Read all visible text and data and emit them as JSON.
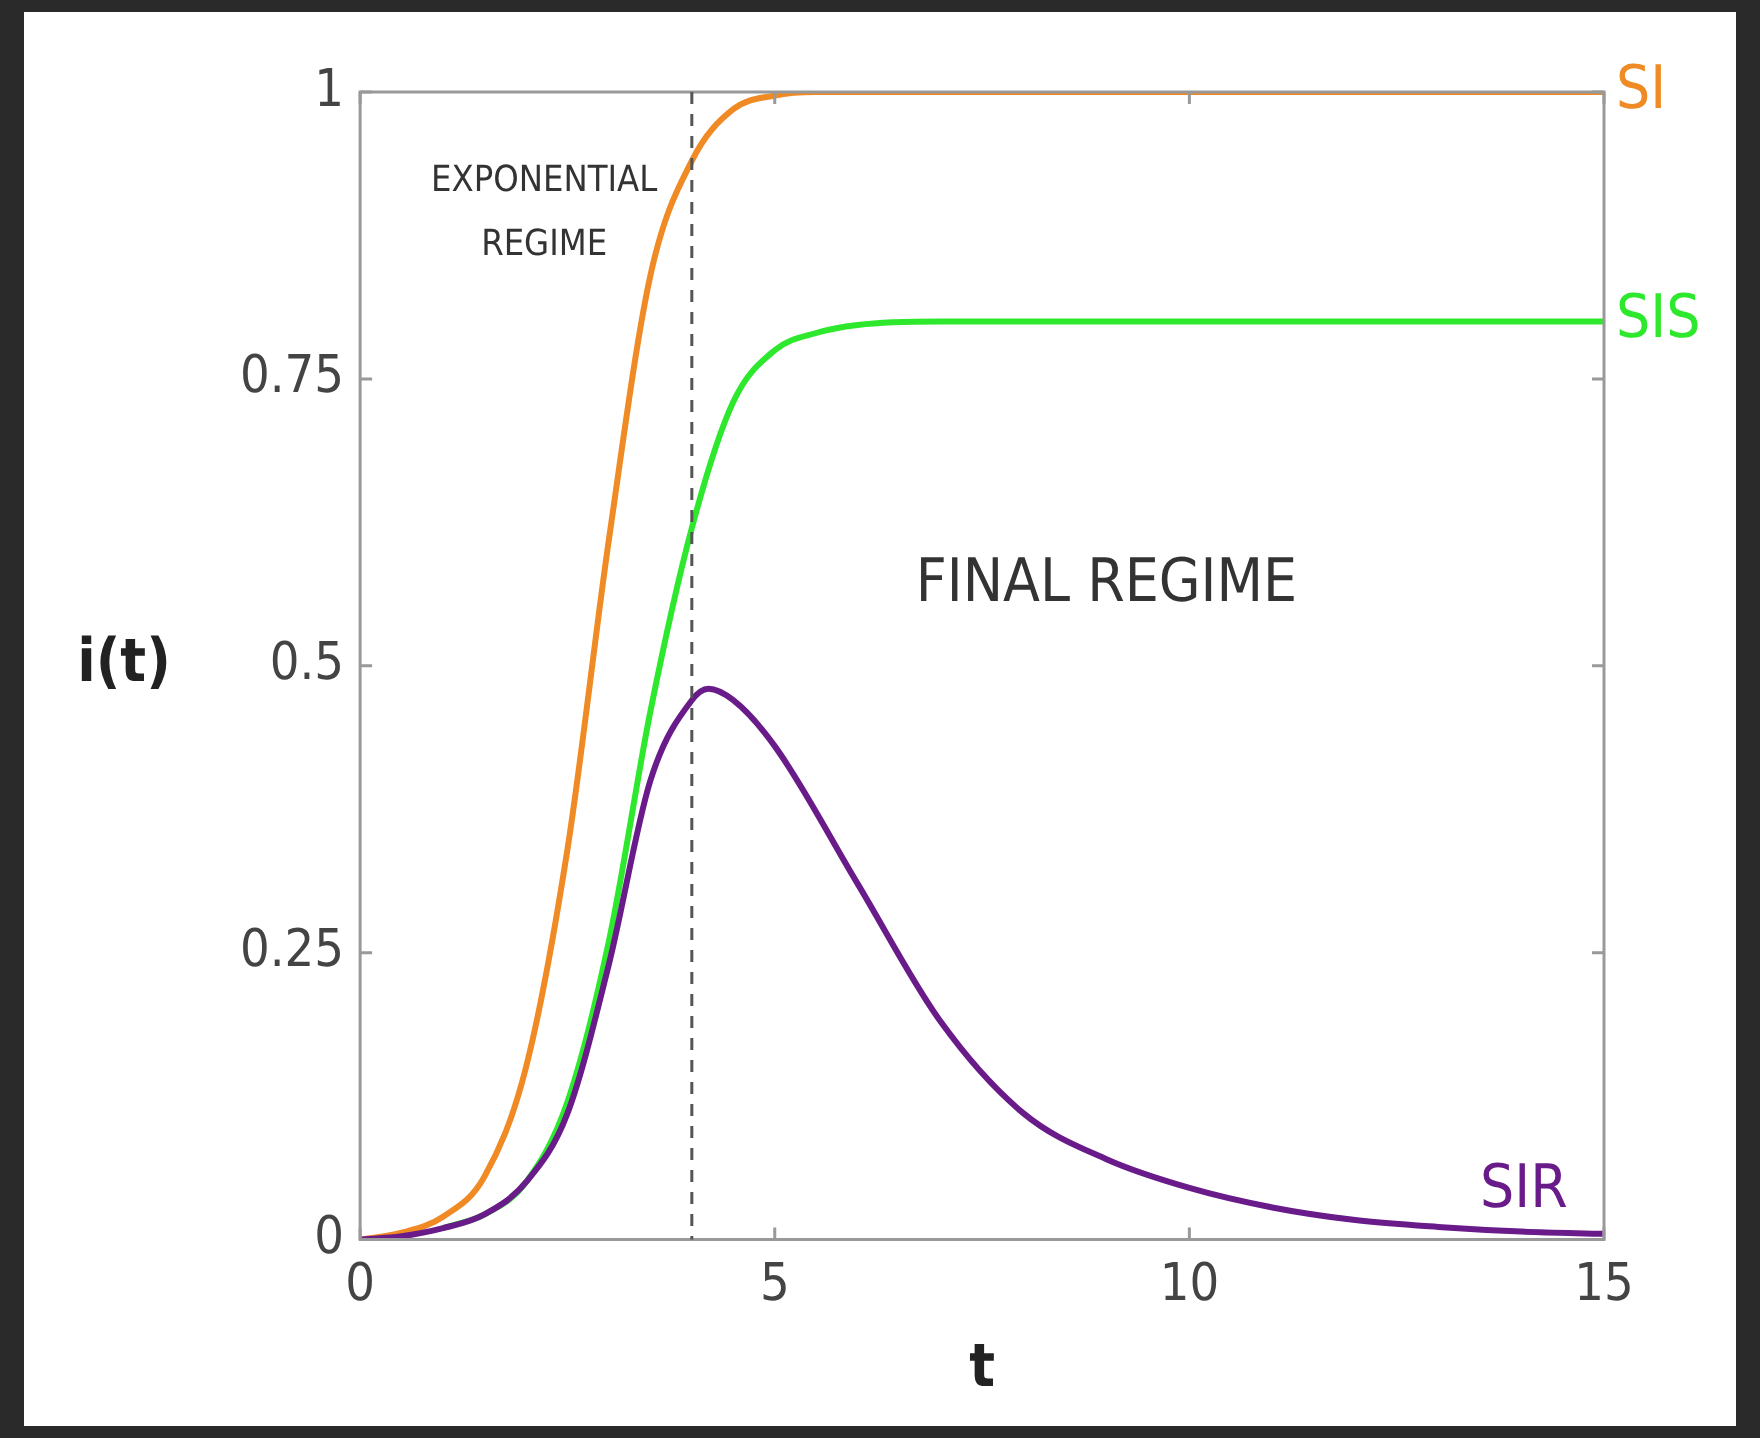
{
  "chart_data": {
    "type": "line",
    "xlabel": "t",
    "ylabel": "i(t)",
    "xlim": [
      0,
      15
    ],
    "ylim": [
      0,
      1
    ],
    "xticks": [
      0,
      5,
      10,
      15
    ],
    "yticks": [
      0,
      0.25,
      0.5,
      0.75,
      1
    ],
    "grid": false,
    "legend": false,
    "marker": "none",
    "line_style": "solid",
    "annotations": [
      "EXPONENTIAL REGIME",
      "FINAL REGIME"
    ],
    "ref_lines": [
      {
        "axis": "x",
        "value": 4,
        "label": null,
        "color": "#555555",
        "line_style": "dashed"
      }
    ],
    "series": [
      {
        "name": "SI",
        "color": "#f08a24",
        "x": [
          0,
          0.5,
          1,
          1.5,
          2,
          2.5,
          3,
          3.5,
          4,
          4.5,
          5,
          5.5,
          6,
          7,
          8,
          10,
          12,
          15
        ],
        "values": [
          0,
          0.006,
          0.02,
          0.055,
          0.15,
          0.34,
          0.61,
          0.84,
          0.94,
          0.985,
          0.997,
          1,
          1,
          1,
          1,
          1,
          1,
          1
        ]
      },
      {
        "name": "SIS",
        "color": "#2ee82e",
        "x": [
          1,
          1.5,
          2,
          2.5,
          3,
          3.5,
          4,
          4.5,
          5,
          5.5,
          6,
          7,
          8,
          10,
          12,
          15
        ],
        "values": [
          0.01,
          0.022,
          0.05,
          0.12,
          0.26,
          0.46,
          0.62,
          0.73,
          0.775,
          0.79,
          0.797,
          0.8,
          0.8,
          0.8,
          0.8,
          0.8
        ]
      },
      {
        "name": "SIR",
        "color": "#6a1b8a",
        "x": [
          0,
          0.5,
          1,
          1.5,
          2,
          2.5,
          3,
          3.5,
          4,
          4.2,
          4.5,
          5,
          6,
          7,
          8,
          9,
          10,
          11,
          12,
          13,
          14,
          15
        ],
        "values": [
          0,
          0.003,
          0.01,
          0.022,
          0.05,
          0.11,
          0.24,
          0.4,
          0.47,
          0.48,
          0.47,
          0.43,
          0.31,
          0.19,
          0.11,
          0.07,
          0.045,
          0.028,
          0.017,
          0.011,
          0.007,
          0.005
        ]
      }
    ]
  }
}
